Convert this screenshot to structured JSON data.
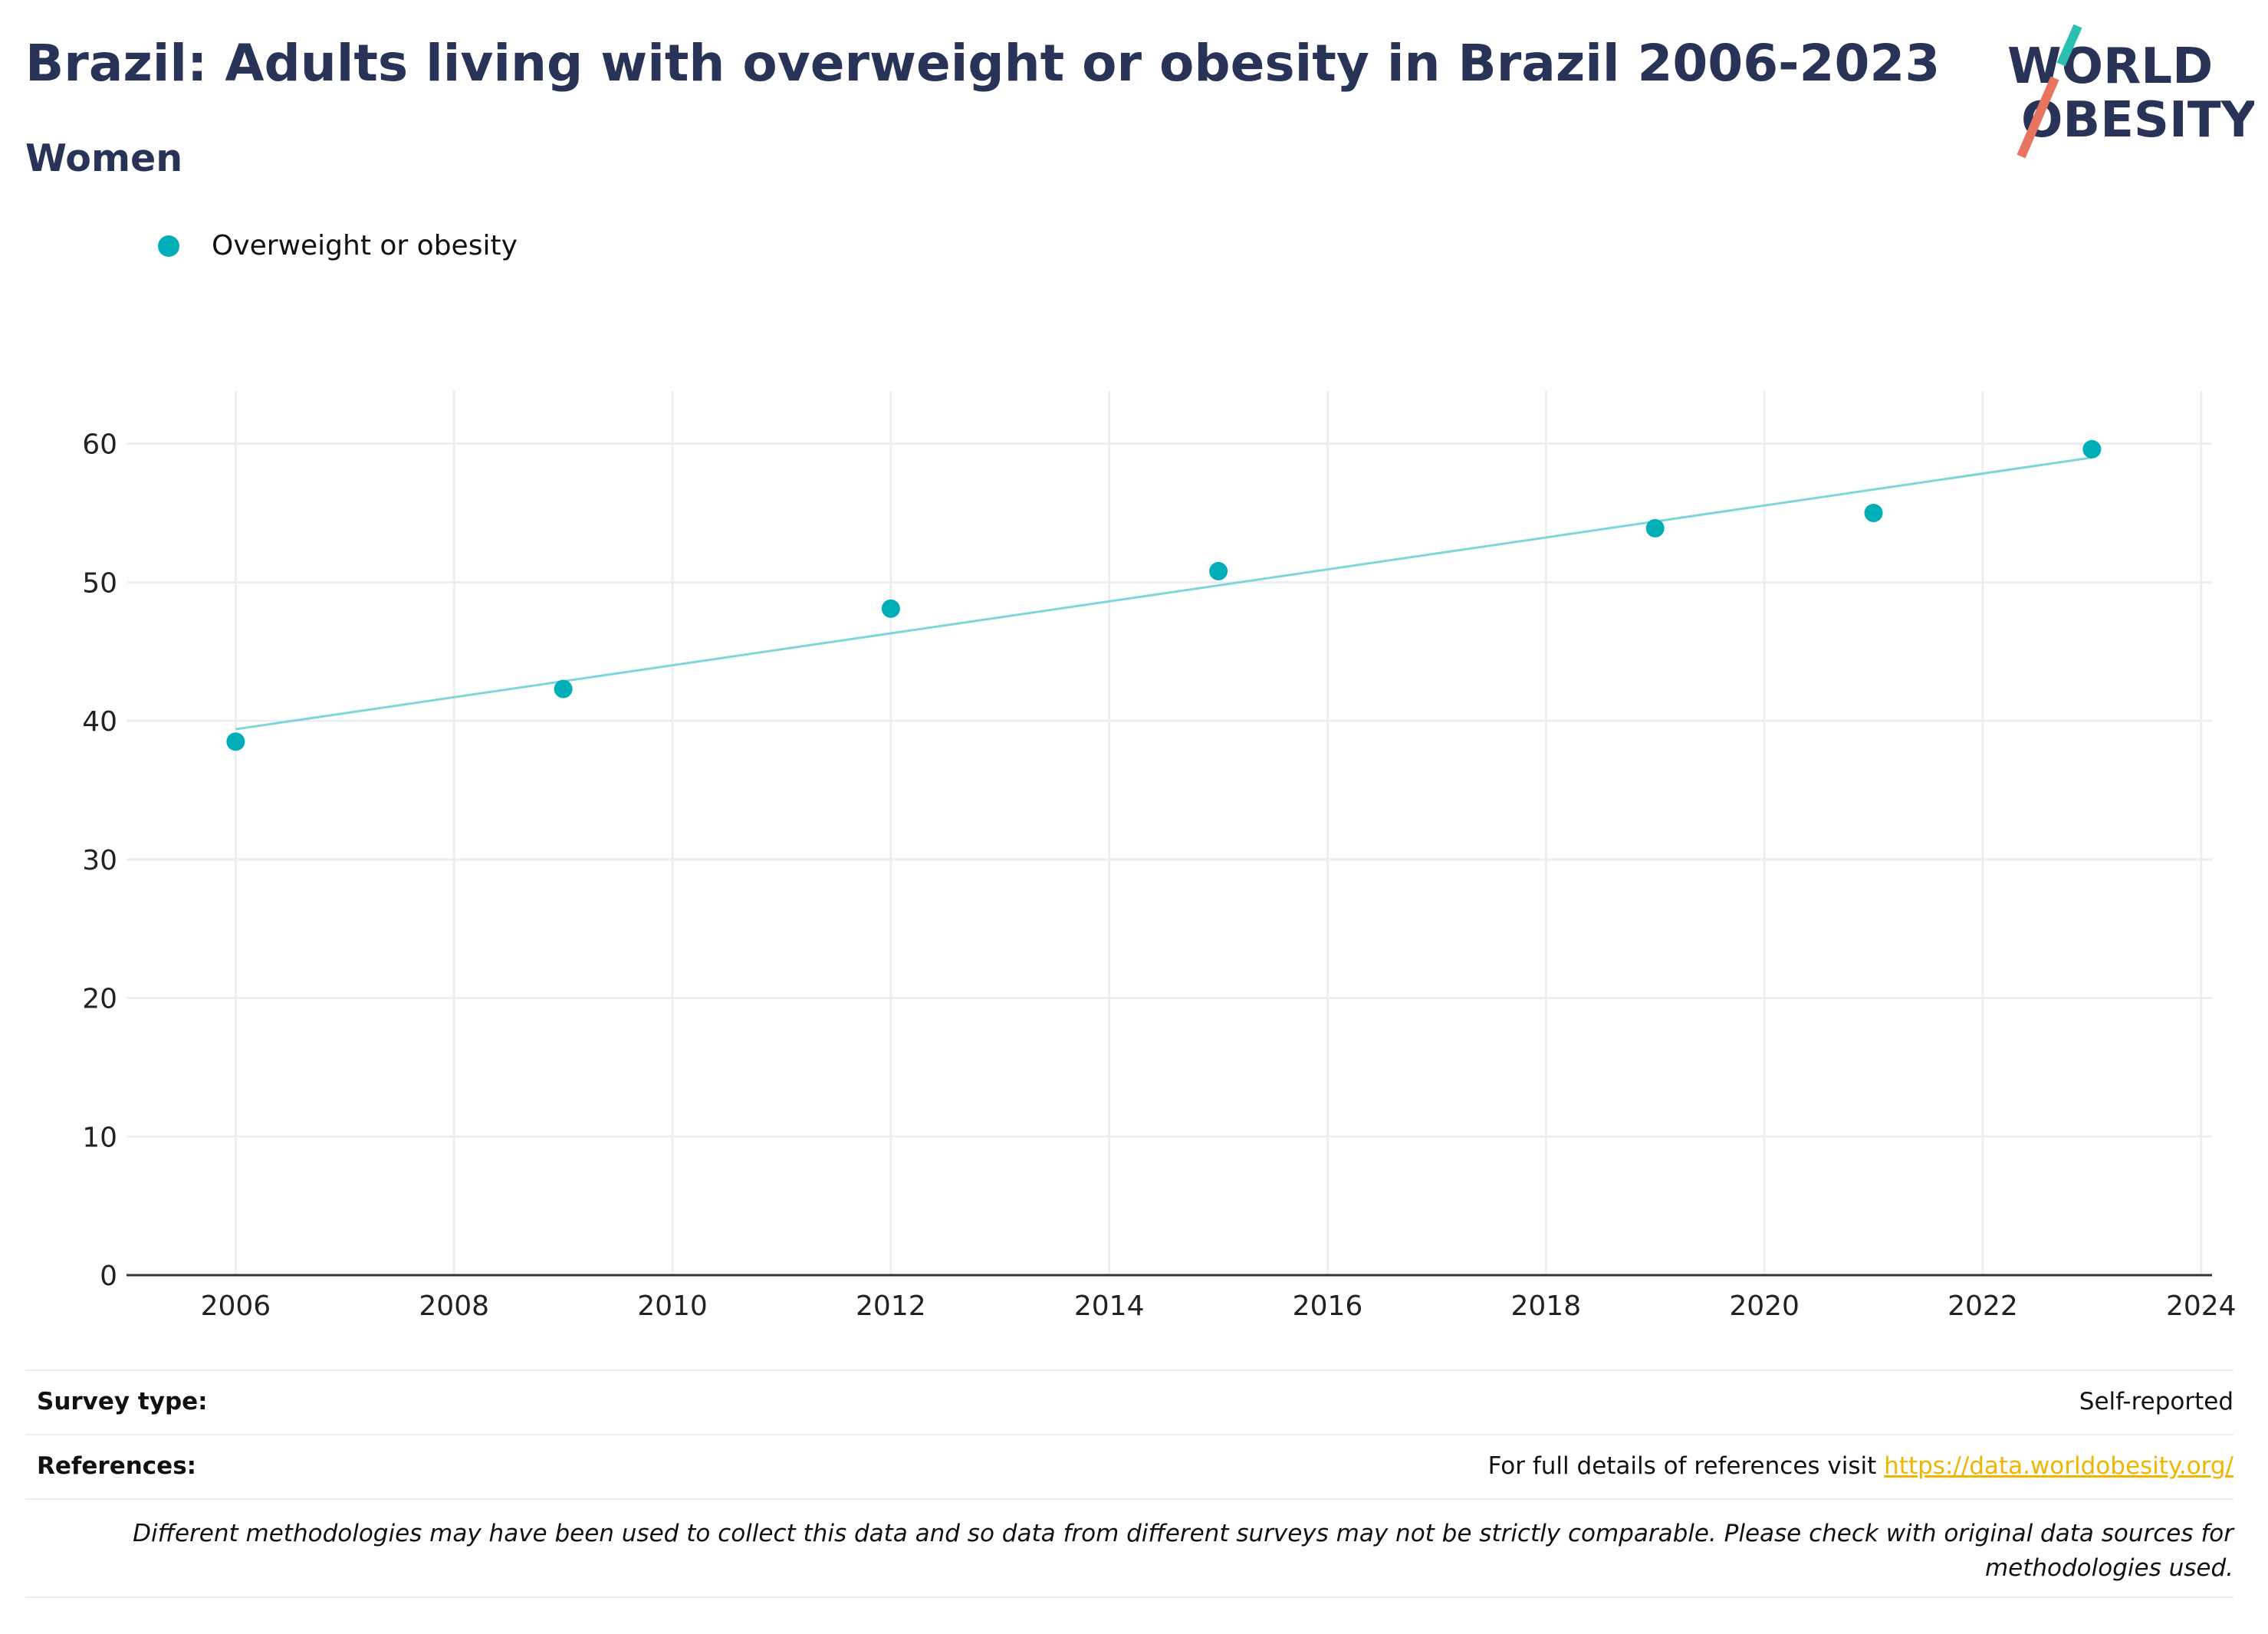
{
  "header": {
    "title": "Brazil: Adults living with overweight or obesity in Brazil 2006-2023",
    "subtitle": "Women"
  },
  "logo": {
    "line1": "WORLD",
    "line2": "OBESITY",
    "colors": {
      "text": "#283357",
      "slash_top": "#2bbfb3",
      "slash_bottom": "#e8735e"
    }
  },
  "legend": {
    "items": [
      {
        "label": "Overweight or obesity",
        "color": "#00aeb8"
      }
    ]
  },
  "chart_data": {
    "type": "scatter",
    "title": "",
    "xlabel": "",
    "ylabel": "",
    "xlim": [
      2005,
      2024.1
    ],
    "ylim": [
      0,
      63.8
    ],
    "x_ticks": [
      2006,
      2008,
      2010,
      2012,
      2014,
      2016,
      2018,
      2020,
      2022,
      2024
    ],
    "y_ticks": [
      0,
      10,
      20,
      30,
      40,
      50,
      60
    ],
    "grid": true,
    "legend_position": "top-left",
    "series": [
      {
        "name": "Overweight or obesity",
        "color": "#00aeb8",
        "points": [
          {
            "x": 2006,
            "y": 38.5
          },
          {
            "x": 2009,
            "y": 42.3
          },
          {
            "x": 2012,
            "y": 48.1
          },
          {
            "x": 2015,
            "y": 50.8
          },
          {
            "x": 2019,
            "y": 53.9
          },
          {
            "x": 2021,
            "y": 55.0
          },
          {
            "x": 2023,
            "y": 59.6
          }
        ]
      }
    ],
    "trendline": {
      "color": "#7fd6da",
      "from": {
        "x": 2006,
        "y": 39.4
      },
      "to": {
        "x": 2023,
        "y": 59.0
      }
    }
  },
  "info": {
    "survey_type_label": "Survey type:",
    "survey_type_value": "Self-reported",
    "references_label": "References:",
    "references_text": "For full details of references visit",
    "references_link": "https://data.worldobesity.org/",
    "disclaimer": "Different methodologies may have been used to collect this data and so data from different surveys may not be strictly comparable. Please check with original data sources for methodologies used."
  }
}
